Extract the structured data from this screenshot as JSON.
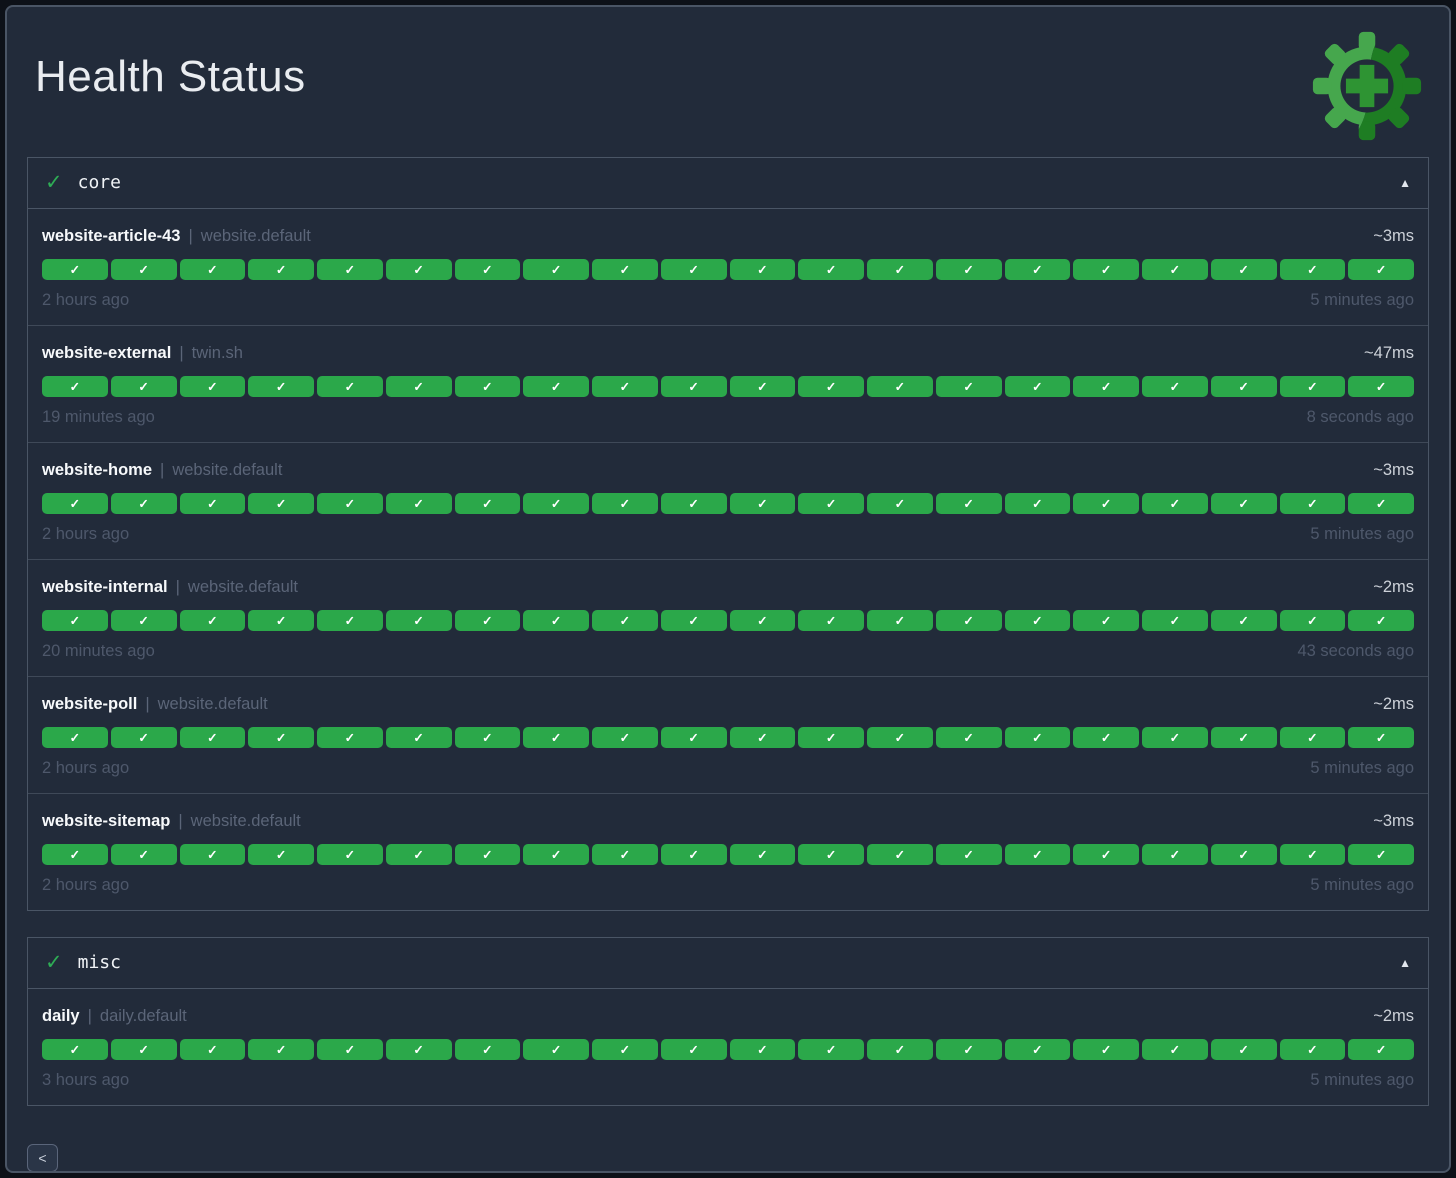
{
  "page": {
    "title": "Health Status",
    "pagination_prev_label": "<"
  },
  "colors": {
    "outer_background": "#0d1118",
    "background": "#222b3a",
    "border": "#4a5565",
    "row_separator": "#3f4958",
    "title_text": "#e9ecf0",
    "subtitle_text": "#5b6578",
    "muted_text": "#4e586b",
    "pill_green": "#2ba84a",
    "check_green": "#2eac55",
    "logo_green_light": "#46a74d",
    "logo_green_dark": "#1e7d23",
    "logo_green_plus": "#2e9433"
  },
  "groups": [
    {
      "name": "core",
      "status_icon": "✓",
      "collapse_icon": "▲",
      "endpoints": [
        {
          "name": "website-article-43",
          "separator": "|",
          "group": "website.default",
          "response_time": "~3ms",
          "oldest": "2 hours ago",
          "newest": "5 minutes ago",
          "checks": 20,
          "check_icon": "✓",
          "status": "up"
        },
        {
          "name": "website-external",
          "separator": "|",
          "group": "twin.sh",
          "response_time": "~47ms",
          "oldest": "19 minutes ago",
          "newest": "8 seconds ago",
          "checks": 20,
          "check_icon": "✓",
          "status": "up"
        },
        {
          "name": "website-home",
          "separator": "|",
          "group": "website.default",
          "response_time": "~3ms",
          "oldest": "2 hours ago",
          "newest": "5 minutes ago",
          "checks": 20,
          "check_icon": "✓",
          "status": "up"
        },
        {
          "name": "website-internal",
          "separator": "|",
          "group": "website.default",
          "response_time": "~2ms",
          "oldest": "20 minutes ago",
          "newest": "43 seconds ago",
          "checks": 20,
          "check_icon": "✓",
          "status": "up"
        },
        {
          "name": "website-poll",
          "separator": "|",
          "group": "website.default",
          "response_time": "~2ms",
          "oldest": "2 hours ago",
          "newest": "5 minutes ago",
          "checks": 20,
          "check_icon": "✓",
          "status": "up"
        },
        {
          "name": "website-sitemap",
          "separator": "|",
          "group": "website.default",
          "response_time": "~3ms",
          "oldest": "2 hours ago",
          "newest": "5 minutes ago",
          "checks": 20,
          "check_icon": "✓",
          "status": "up"
        }
      ]
    },
    {
      "name": "misc",
      "status_icon": "✓",
      "collapse_icon": "▲",
      "endpoints": [
        {
          "name": "daily",
          "separator": "|",
          "group": "daily.default",
          "response_time": "~2ms",
          "oldest": "3 hours ago",
          "newest": "5 minutes ago",
          "checks": 20,
          "check_icon": "✓",
          "status": "up"
        }
      ]
    }
  ]
}
